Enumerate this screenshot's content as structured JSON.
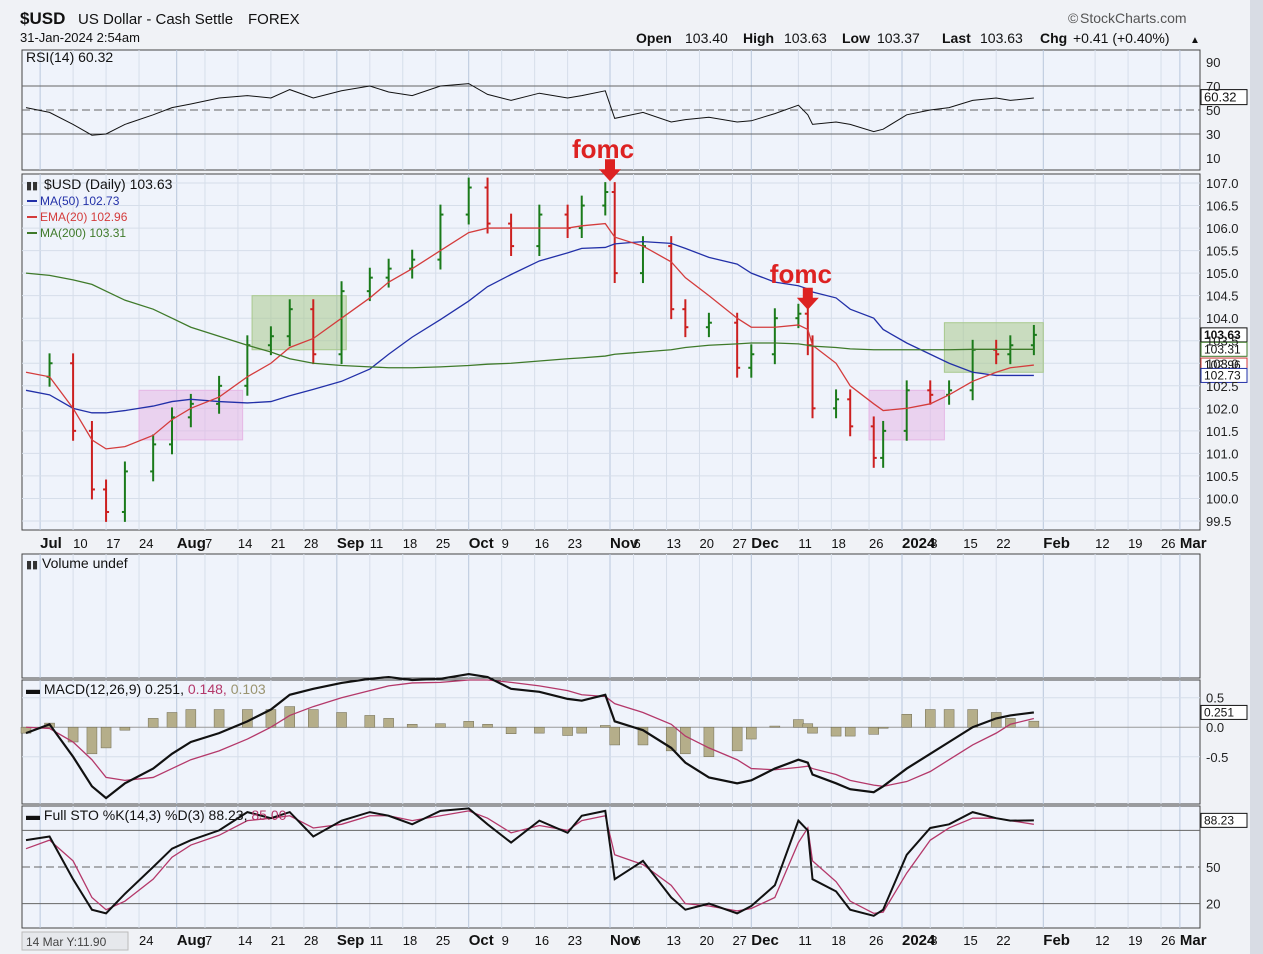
{
  "header": {
    "symbol": "$USD",
    "name": "US Dollar - Cash Settle",
    "exchange": "FOREX",
    "timestamp": "31-Jan-2024 2:54am",
    "brand": "StockCharts.com",
    "open_label": "Open",
    "open": "103.40",
    "high_label": "High",
    "high": "103.63",
    "low_label": "Low",
    "low": "103.37",
    "last_label": "Last",
    "last": "103.63",
    "chg_label": "Chg",
    "chg": "+0.41 (+0.40%)"
  },
  "panels": {
    "rsi": {
      "title": "RSI(14) 60.32",
      "value_tag": "60.32",
      "ticks": [
        "90",
        "70",
        "50",
        "30",
        "10"
      ]
    },
    "price": {
      "title": "$USD (Daily) 103.63",
      "ma50_label": "MA(50) 102.73",
      "ema20_label": "EMA(20) 102.96",
      "ma200_label": "MA(200) 103.31",
      "ticks": [
        "107.0",
        "106.5",
        "106.0",
        "105.5",
        "105.0",
        "104.5",
        "104.0",
        "103.5",
        "103.0",
        "102.5",
        "102.0",
        "101.5",
        "101.0",
        "100.5",
        "100.0",
        "99.5"
      ],
      "tags": {
        "last": "103.63",
        "ma200": "103.31",
        "ema20": "102.96",
        "ma50": "102.73"
      },
      "annotation1": "fomc",
      "annotation2": "fomc"
    },
    "volume": {
      "title": "Volume undef"
    },
    "macd": {
      "title_prefix": "MACD(12,26,9) 0.251, ",
      "signal_value": "0.148",
      "hist_value": "0.103",
      "value_tag": "0.251",
      "ticks": [
        "0.5",
        "0.0",
        "-0.5"
      ]
    },
    "sto": {
      "title_prefix": "Full STO %K(14,3) %D(3) 88.23, ",
      "d_value": "85.00",
      "value_tag": "88.23",
      "ticks": [
        "50",
        "20"
      ]
    }
  },
  "x_axis": {
    "labels": [
      "Jul",
      "10",
      "17",
      "24",
      "Aug",
      "7",
      "14",
      "21",
      "28",
      "Sep",
      "11",
      "18",
      "25",
      "Oct",
      "9",
      "16",
      "23",
      "Nov",
      "6",
      "13",
      "20",
      "27",
      "Dec",
      "11",
      "18",
      "26",
      "2024",
      "8",
      "15",
      "22",
      "Feb",
      "12",
      "19",
      "26",
      "Mar"
    ],
    "bottom_first_label": "4",
    "bottom_corner": "14 Mar Y:11.90"
  },
  "colors": {
    "up": "#1a7a1a",
    "down": "#cc1f1f",
    "ma50": "#2230a8",
    "ema20": "#d43c3c",
    "ma200": "#3f7a2a",
    "accent_red": "#dd2222"
  },
  "chart_data": {
    "type": "line",
    "title": "$USD (Daily) 103.63",
    "x": [
      "2023-06-30",
      "2023-07-05",
      "2023-07-10",
      "2023-07-14",
      "2023-07-17",
      "2023-07-21",
      "2023-07-27",
      "2023-07-31",
      "2023-08-04",
      "2023-08-10",
      "2023-08-16",
      "2023-08-21",
      "2023-08-25",
      "2023-08-30",
      "2023-09-05",
      "2023-09-11",
      "2023-09-15",
      "2023-09-20",
      "2023-09-26",
      "2023-10-02",
      "2023-10-06",
      "2023-10-11",
      "2023-10-17",
      "2023-10-23",
      "2023-10-26",
      "2023-10-31",
      "2023-11-02",
      "2023-11-08",
      "2023-11-14",
      "2023-11-17",
      "2023-11-22",
      "2023-11-28",
      "2023-12-01",
      "2023-12-06",
      "2023-12-11",
      "2023-12-13",
      "2023-12-14",
      "2023-12-19",
      "2023-12-22",
      "2023-12-27",
      "2023-12-29",
      "2024-01-03",
      "2024-01-08",
      "2024-01-12",
      "2024-01-17",
      "2024-01-22",
      "2024-01-25",
      "2024-01-30"
    ],
    "series": [
      {
        "name": "$USD",
        "values": [
          102.7,
          103.0,
          101.5,
          100.2,
          99.7,
          100.6,
          101.2,
          101.8,
          102.1,
          102.5,
          103.4,
          103.6,
          104.2,
          103.2,
          104.6,
          104.9,
          105.1,
          105.3,
          106.3,
          106.9,
          106.1,
          105.6,
          106.3,
          106.0,
          106.5,
          106.8,
          105.0,
          105.6,
          104.2,
          103.8,
          103.9,
          102.9,
          103.2,
          104.0,
          104.1,
          103.4,
          102.0,
          102.2,
          101.6,
          100.9,
          101.5,
          102.4,
          102.3,
          102.4,
          103.3,
          103.2,
          103.4,
          103.63
        ]
      },
      {
        "name": "MA(50)",
        "values": [
          102.4,
          102.3,
          102.0,
          101.9,
          101.9,
          101.95,
          102.05,
          102.15,
          102.2,
          102.15,
          102.12,
          102.15,
          102.28,
          102.42,
          102.6,
          102.87,
          103.2,
          103.58,
          103.97,
          104.38,
          104.7,
          104.97,
          105.27,
          105.45,
          105.55,
          105.57,
          105.65,
          105.7,
          105.66,
          105.55,
          105.35,
          105.2,
          105.0,
          104.8,
          104.72,
          104.65,
          104.58,
          104.45,
          104.2,
          104.0,
          103.75,
          103.45,
          103.2,
          103.0,
          102.8,
          102.73,
          102.73,
          102.73
        ]
      },
      {
        "name": "EMA(20)",
        "values": [
          102.8,
          102.7,
          102.0,
          101.3,
          101.1,
          101.15,
          101.4,
          101.75,
          102.0,
          102.25,
          102.7,
          103.0,
          103.35,
          103.55,
          104.0,
          104.45,
          104.8,
          105.1,
          105.5,
          105.9,
          106.0,
          106.0,
          106.0,
          106.0,
          106.05,
          106.1,
          105.8,
          105.6,
          105.25,
          104.9,
          104.5,
          104.0,
          103.8,
          103.8,
          103.85,
          103.75,
          103.4,
          103.0,
          102.5,
          102.1,
          101.95,
          102.0,
          102.1,
          102.3,
          102.6,
          102.8,
          102.9,
          102.96
        ]
      },
      {
        "name": "MA(200)",
        "values": [
          105.0,
          104.95,
          104.85,
          104.75,
          104.6,
          104.4,
          104.2,
          104.0,
          103.8,
          103.6,
          103.4,
          103.25,
          103.1,
          103.0,
          102.95,
          102.92,
          102.9,
          102.9,
          102.92,
          102.95,
          102.98,
          103.0,
          103.05,
          103.1,
          103.12,
          103.16,
          103.2,
          103.25,
          103.3,
          103.35,
          103.4,
          103.43,
          103.45,
          103.45,
          103.43,
          103.4,
          103.38,
          103.35,
          103.32,
          103.3,
          103.3,
          103.3,
          103.3,
          103.3,
          103.31,
          103.31,
          103.31,
          103.31
        ]
      }
    ],
    "rsi": [
      52,
      48,
      38,
      29,
      30,
      38,
      46,
      52,
      55,
      60,
      62,
      60,
      67,
      60,
      66,
      70,
      65,
      62,
      70,
      72,
      63,
      58,
      64,
      60,
      62,
      66,
      43,
      48,
      40,
      42,
      44,
      40,
      41,
      47,
      54,
      46,
      38,
      40,
      38,
      32,
      34,
      46,
      50,
      52,
      58,
      60,
      58,
      60
    ],
    "macd": [
      -0.1,
      0.05,
      -0.5,
      -1.0,
      -1.2,
      -0.95,
      -0.7,
      -0.45,
      -0.25,
      -0.1,
      0.1,
      0.3,
      0.55,
      0.65,
      0.75,
      0.82,
      0.85,
      0.8,
      0.82,
      0.9,
      0.85,
      0.65,
      0.6,
      0.48,
      0.45,
      0.55,
      0.1,
      -0.05,
      -0.35,
      -0.6,
      -0.85,
      -0.95,
      -0.9,
      -0.7,
      -0.55,
      -0.6,
      -0.8,
      -0.95,
      -1.05,
      -1.1,
      -1.0,
      -0.7,
      -0.45,
      -0.25,
      0.0,
      0.15,
      0.2,
      0.251
    ],
    "macd_signal": [
      0.0,
      -0.02,
      -0.25,
      -0.55,
      -0.85,
      -0.9,
      -0.85,
      -0.7,
      -0.55,
      -0.4,
      -0.2,
      0.0,
      0.2,
      0.35,
      0.5,
      0.62,
      0.7,
      0.75,
      0.76,
      0.8,
      0.8,
      0.76,
      0.7,
      0.62,
      0.55,
      0.52,
      0.4,
      0.25,
      0.05,
      -0.15,
      -0.35,
      -0.55,
      -0.7,
      -0.72,
      -0.68,
      -0.66,
      -0.7,
      -0.8,
      -0.9,
      -0.98,
      -1.0,
      -0.92,
      -0.75,
      -0.55,
      -0.3,
      -0.1,
      0.05,
      0.148
    ],
    "sto_k": [
      72,
      75,
      40,
      15,
      12,
      28,
      50,
      65,
      72,
      80,
      95,
      90,
      95,
      75,
      88,
      95,
      92,
      85,
      96,
      98,
      85,
      70,
      88,
      78,
      92,
      96,
      40,
      55,
      25,
      15,
      20,
      12,
      18,
      35,
      88,
      80,
      40,
      30,
      15,
      10,
      15,
      60,
      82,
      85,
      95,
      90,
      88,
      88.23
    ],
    "sto_d": [
      65,
      72,
      55,
      25,
      15,
      22,
      40,
      58,
      68,
      76,
      88,
      90,
      92,
      82,
      85,
      92,
      92,
      88,
      92,
      96,
      90,
      78,
      84,
      80,
      88,
      92,
      60,
      52,
      35,
      20,
      18,
      14,
      16,
      25,
      70,
      82,
      55,
      38,
      22,
      12,
      13,
      45,
      72,
      82,
      90,
      90,
      88,
      85.0
    ],
    "ylim": [
      99.3,
      107.2
    ],
    "rsi_ylim": [
      0,
      100
    ],
    "macd_ylim": [
      -1.3,
      0.8
    ],
    "sto_ylim": [
      0,
      100
    ],
    "grid": true
  }
}
